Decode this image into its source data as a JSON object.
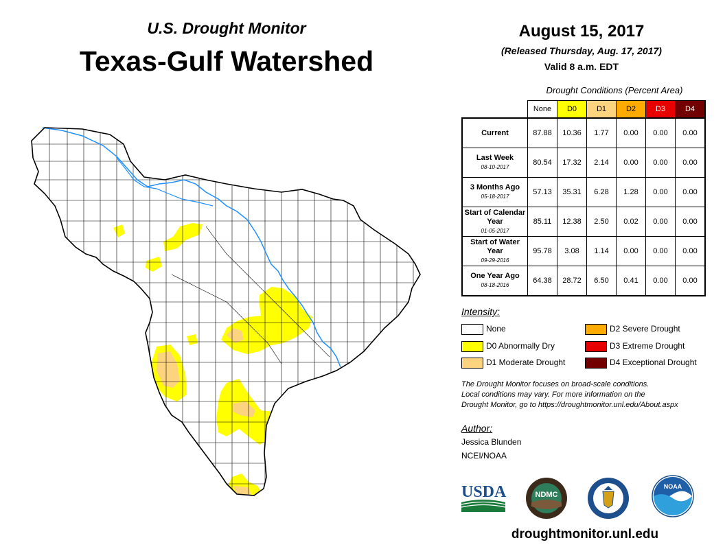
{
  "header": {
    "subtitle": "U.S. Drought Monitor",
    "title": "Texas-Gulf Watershed"
  },
  "date_block": {
    "date": "August 15, 2017",
    "released": "(Released Thursday, Aug. 17, 2017)",
    "valid": "Valid 8 a.m. EDT"
  },
  "table": {
    "caption": "Drought Conditions (Percent Area)",
    "columns": [
      {
        "label": "None",
        "color": "#ffffff",
        "text_color": "#000000"
      },
      {
        "label": "D0",
        "color": "#ffff00",
        "text_color": "#000000"
      },
      {
        "label": "D1",
        "color": "#fcd37f",
        "text_color": "#000000"
      },
      {
        "label": "D2",
        "color": "#ffaa00",
        "text_color": "#000000"
      },
      {
        "label": "D3",
        "color": "#e60000",
        "text_color": "#ffffff"
      },
      {
        "label": "D4",
        "color": "#730000",
        "text_color": "#ffffff"
      }
    ],
    "rows": [
      {
        "label": "Current",
        "date": "",
        "values": [
          "87.88",
          "10.36",
          "1.77",
          "0.00",
          "0.00",
          "0.00"
        ]
      },
      {
        "label": "Last Week",
        "date": "08-10-2017",
        "values": [
          "80.54",
          "17.32",
          "2.14",
          "0.00",
          "0.00",
          "0.00"
        ]
      },
      {
        "label": "3 Months Ago",
        "date": "05-18-2017",
        "values": [
          "57.13",
          "35.31",
          "6.28",
          "1.28",
          "0.00",
          "0.00"
        ]
      },
      {
        "label": "Start of Calendar Year",
        "date": "01-05-2017",
        "values": [
          "85.11",
          "12.38",
          "2.50",
          "0.02",
          "0.00",
          "0.00"
        ]
      },
      {
        "label": "Start of Water Year",
        "date": "09-29-2016",
        "values": [
          "95.78",
          "3.08",
          "1.14",
          "0.00",
          "0.00",
          "0.00"
        ]
      },
      {
        "label": "One Year Ago",
        "date": "08-18-2016",
        "values": [
          "64.38",
          "28.72",
          "6.50",
          "0.41",
          "0.00",
          "0.00"
        ]
      }
    ]
  },
  "legend": {
    "heading": "Intensity:",
    "items": [
      {
        "label": "None",
        "color": "#ffffff"
      },
      {
        "label": "D0 Abnormally Dry",
        "color": "#ffff00"
      },
      {
        "label": "D1 Moderate Drought",
        "color": "#fcd37f"
      },
      {
        "label": "D2 Severe Drought",
        "color": "#ffaa00"
      },
      {
        "label": "D3 Extreme Drought",
        "color": "#e60000"
      },
      {
        "label": "D4 Exceptional Drought",
        "color": "#730000"
      }
    ]
  },
  "note": {
    "line1": "The Drought Monitor focuses on broad-scale conditions.",
    "line2": "Local conditions may vary. For more information on the",
    "line3": "Drought Monitor, go to https://droughtmonitor.unl.edu/About.aspx"
  },
  "author": {
    "heading": "Author:",
    "name": "Jessica Blunden",
    "org": "NCEI/NOAA"
  },
  "logos": {
    "usda": "USDA",
    "ndmc": "NDMC",
    "noaa": "NOAA"
  },
  "website": "droughtmonitor.unl.edu",
  "map": {
    "region": "Texas-Gulf Watershed",
    "colors": {
      "outline": "#000000",
      "river": "#1e90ff",
      "d0": "#ffff00",
      "d1": "#fcd37f"
    }
  }
}
